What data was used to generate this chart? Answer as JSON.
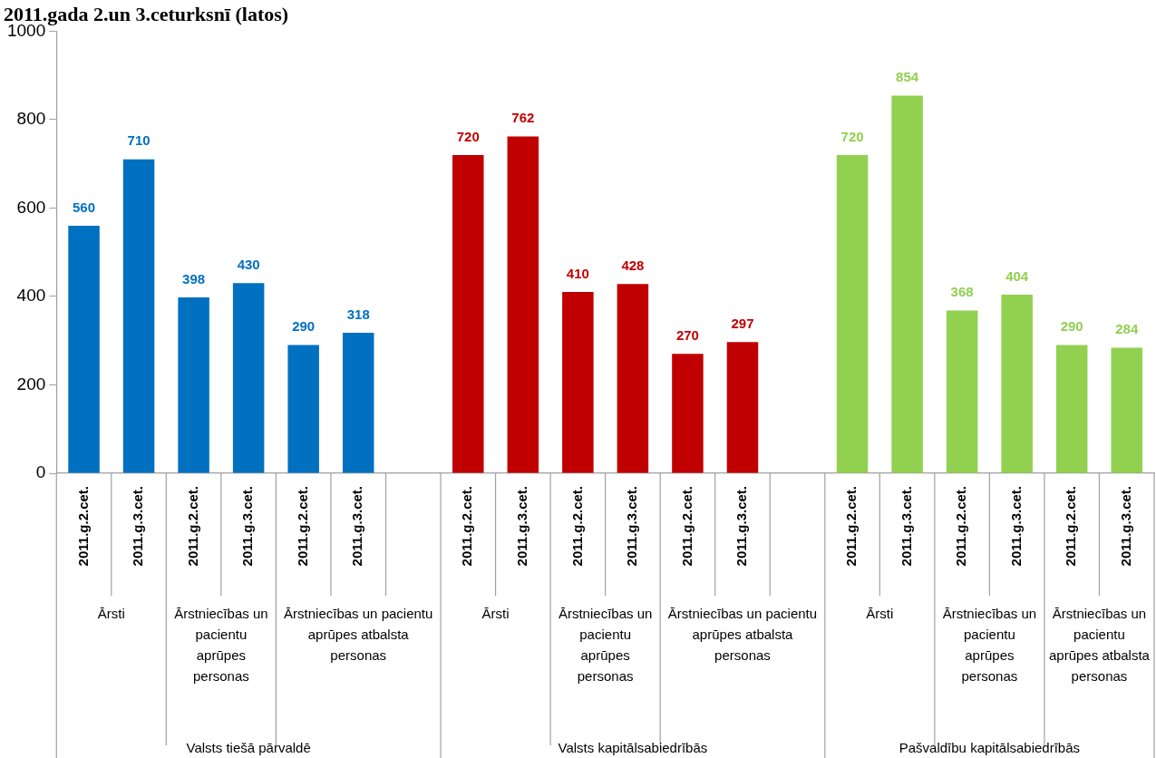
{
  "chart_data": {
    "type": "bar",
    "title": "2011.gada 2.un 3.ceturksnī (latos)",
    "categories": [
      "2011.g.2.cet.",
      "2011.g.3.cet.",
      "2011.g.2.cet.",
      "2011.g.3.cet.",
      "2011.g.2.cet.",
      "2011.g.3.cet.",
      null,
      "2011.g.2.cet.",
      "2011.g.3.cet.",
      "2011.g.2.cet.",
      "2011.g.3.cet.",
      "2011.g.2.cet.",
      "2011.g.3.cet.",
      null,
      "2011.g.2.cet.",
      "2011.g.3.cet.",
      "2011.g.2.cet.",
      "2011.g.3.cet.",
      "2011.g.2.cet.",
      "2011.g.3.cet."
    ],
    "values": [
      560,
      710,
      398,
      430,
      290,
      318,
      null,
      720,
      762,
      410,
      428,
      270,
      297,
      null,
      720,
      854,
      368,
      404,
      290,
      284
    ],
    "colors": [
      "#0070c0",
      "#0070c0",
      "#0070c0",
      "#0070c0",
      "#0070c0",
      "#0070c0",
      "#0070c0",
      "#c00000",
      "#c00000",
      "#c00000",
      "#c00000",
      "#c00000",
      "#c00000",
      "#c00000",
      "#92d050",
      "#92d050",
      "#92d050",
      "#92d050",
      "#92d050",
      "#92d050"
    ],
    "ylim": [
      0,
      1000
    ],
    "yticks": [
      0,
      200,
      400,
      600,
      800,
      1000
    ],
    "grid": false,
    "legend": false,
    "data_labels": true,
    "annotations": [
      "Ārsti",
      "Ārstniecības un pacientu aprūpes personas",
      "Ārstniecības un pacientu aprūpes atbalsta personas",
      "Ārsti",
      "Ārstniecības un pacientu aprūpes personas",
      "Ārstniecības un pacientu aprūpes atbalsta personas",
      "Ārsti",
      "Ārstniecības un pacientu aprūpes personas",
      "Ārstniecības un pacientu aprūpes atbalsta personas",
      "Valsts tiešā pārvaldē",
      "Valsts kapitālsabiedrībās",
      "Pašvaldību kapitālsabiedrībās"
    ]
  }
}
